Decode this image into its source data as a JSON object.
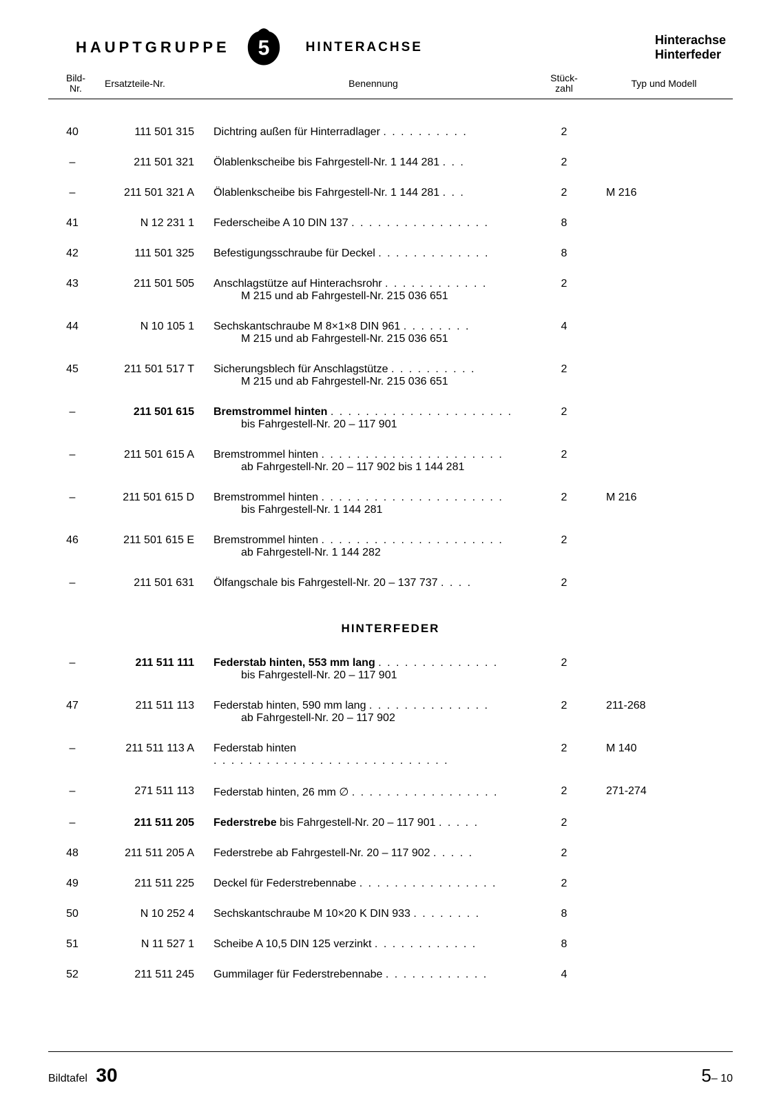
{
  "header": {
    "hauptgruppe": "HAUPTGRUPPE",
    "badge_number": "5",
    "section_title": "HINTERACHSE",
    "right_line1": "Hinterachse",
    "right_line2": "Hinterfeder"
  },
  "col_headers": {
    "bild1": "Bild-",
    "bild2": "Nr.",
    "ersatz": "Ersatzteile-Nr.",
    "benennung": "Benennung",
    "stueck1": "Stück-",
    "stueck2": "zahl",
    "typ": "Typ und Modell"
  },
  "rows1": [
    {
      "bild": "40",
      "part": "111 501 315",
      "desc": "Dichtring außen für Hinterradlager",
      "sub": "",
      "dots": ". . . . . . . . . .",
      "qty": "2",
      "mod": "",
      "bold": false
    },
    {
      "bild": "–",
      "part": "211 501 321",
      "desc": "Ölablenkscheibe bis Fahrgestell-Nr. 1 144 281",
      "sub": "",
      "dots": ". . .",
      "qty": "2",
      "mod": "",
      "bold": false
    },
    {
      "bild": "–",
      "part": "211 501 321 A",
      "desc": "Ölablenkscheibe bis Fahrgestell-Nr. 1 144 281",
      "sub": "",
      "dots": ". . .",
      "qty": "2",
      "mod": "M 216",
      "bold": false
    },
    {
      "bild": "41",
      "part": "N 12 231 1",
      "desc": "Federscheibe A 10 DIN 137",
      "sub": "",
      "dots": ". . . . . . . . . . . . . . . .",
      "qty": "8",
      "mod": "",
      "bold": false
    },
    {
      "bild": "42",
      "part": "111 501 325",
      "desc": "Befestigungsschraube für Deckel",
      "sub": "",
      "dots": ". . . . . . . . . . . . .",
      "qty": "8",
      "mod": "",
      "bold": false
    },
    {
      "bild": "43",
      "part": "211 501 505",
      "desc": "Anschlagstütze auf Hinterachsrohr",
      "sub": "M 215 und ab Fahrgestell-Nr. 215 036 651",
      "dots": ". . . . . . . . . . . .",
      "qty": "2",
      "mod": "",
      "bold": false
    },
    {
      "bild": "44",
      "part": "N 10 105 1",
      "desc": "Sechskantschraube M 8×1×8 DIN 961",
      "sub": "M 215 und ab Fahrgestell-Nr. 215 036 651",
      "dots": ". . . . . . . .",
      "qty": "4",
      "mod": "",
      "bold": false
    },
    {
      "bild": "45",
      "part": "211 501 517 T",
      "desc": "Sicherungsblech für Anschlagstütze",
      "sub": "M 215 und ab Fahrgestell-Nr. 215 036 651",
      "dots": ". . . . . . . . . .",
      "qty": "2",
      "mod": "",
      "bold": false
    },
    {
      "bild": "–",
      "part": "211 501 615",
      "desc": "Bremstrommel hinten",
      "sub": "bis Fahrgestell-Nr. 20 – 117 901",
      "dots": ". . . . . . . . . . . . . . . . . . . . .",
      "qty": "2",
      "mod": "",
      "bold": true
    },
    {
      "bild": "–",
      "part": "211 501 615 A",
      "desc": "Bremstrommel hinten",
      "sub": "ab Fahrgestell-Nr. 20 – 117 902 bis 1 144 281",
      "dots": ". . . . . . . . . . . . . . . . . . . . .",
      "qty": "2",
      "mod": "",
      "bold": false
    },
    {
      "bild": "–",
      "part": "211 501 615 D",
      "desc": "Bremstrommel hinten",
      "sub": "bis Fahrgestell-Nr. 1 144 281",
      "dots": ". . . . . . . . . . . . . . . . . . . . .",
      "qty": "2",
      "mod": "M 216",
      "bold": false
    },
    {
      "bild": "46",
      "part": "211 501 615 E",
      "desc": "Bremstrommel hinten",
      "sub": "ab Fahrgestell-Nr. 1 144 282",
      "dots": ". . . . . . . . . . . . . . . . . . . . .",
      "qty": "2",
      "mod": "",
      "bold": false
    },
    {
      "bild": "–",
      "part": "211 501 631",
      "desc": "Ölfangschale bis Fahrgestell-Nr. 20 – 137 737",
      "sub": "",
      "dots": ". . . .",
      "qty": "2",
      "mod": "",
      "bold": false
    }
  ],
  "section2_title": "HINTERFEDER",
  "rows2": [
    {
      "bild": "–",
      "part": "211 511 111",
      "desc": "Federstab hinten, 553 mm lang",
      "sub": "bis Fahrgestell-Nr. 20 – 117 901",
      "dots": ". . . . . . . . . . . . . .",
      "qty": "2",
      "mod": "",
      "bold": true
    },
    {
      "bild": "47",
      "part": "211 511 113",
      "desc": "Federstab hinten, 590 mm lang",
      "sub": "ab Fahrgestell-Nr. 20 – 117 902",
      "dots": ". . . . . . . . . . . . . .",
      "qty": "2",
      "mod": "211-268",
      "bold": false
    },
    {
      "bild": "–",
      "part": "211 511 113 A",
      "desc": "Federstab hinten",
      "sub": "",
      "dots": ". . . . . . . . . . . . . . . . . . . . . . . . . . .",
      "qty": "2",
      "mod": "M 140",
      "bold": false
    },
    {
      "bild": "–",
      "part": "271 511 113",
      "desc": "Federstab hinten, 26 mm ∅",
      "sub": "",
      "dots": ". . . . . . . . . . . . . . . . .",
      "qty": "2",
      "mod": "271-274",
      "bold": false
    },
    {
      "bild": "–",
      "part": "211 511 205",
      "desc": "Federstrebe",
      "desc_tail": " bis Fahrgestell-Nr. 20 – 117 901",
      "sub": "",
      "dots": ". . . . .",
      "qty": "2",
      "mod": "",
      "bold": true
    },
    {
      "bild": "48",
      "part": "211 511 205 A",
      "desc": "Federstrebe ab Fahrgestell-Nr. 20 – 117 902",
      "sub": "",
      "dots": ". . . . .",
      "qty": "2",
      "mod": "",
      "bold": false
    },
    {
      "bild": "49",
      "part": "211 511 225",
      "desc": "Deckel für Federstrebennabe",
      "sub": "",
      "dots": ". . . . . . . . . . . . . . . .",
      "qty": "2",
      "mod": "",
      "bold": false
    },
    {
      "bild": "50",
      "part": "N 10 252 4",
      "desc": "Sechskantschraube M 10×20 K DIN 933",
      "sub": "",
      "dots": ". . . . . . . .",
      "qty": "8",
      "mod": "",
      "bold": false
    },
    {
      "bild": "51",
      "part": "N 11 527 1",
      "desc": "Scheibe A 10,5 DIN 125 verzinkt",
      "sub": "",
      "dots": ". . . . . . . . . . . .",
      "qty": "8",
      "mod": "",
      "bold": false
    },
    {
      "bild": "52",
      "part": "211 511 245",
      "desc": "Gummilager für Federstrebennabe",
      "sub": "",
      "dots": ". . . . . . . . . . . .",
      "qty": "4",
      "mod": "",
      "bold": false
    }
  ],
  "footer": {
    "left_label": "Bildtafel",
    "left_num": "30",
    "right_num": "5",
    "right_suffix": "– 10"
  }
}
